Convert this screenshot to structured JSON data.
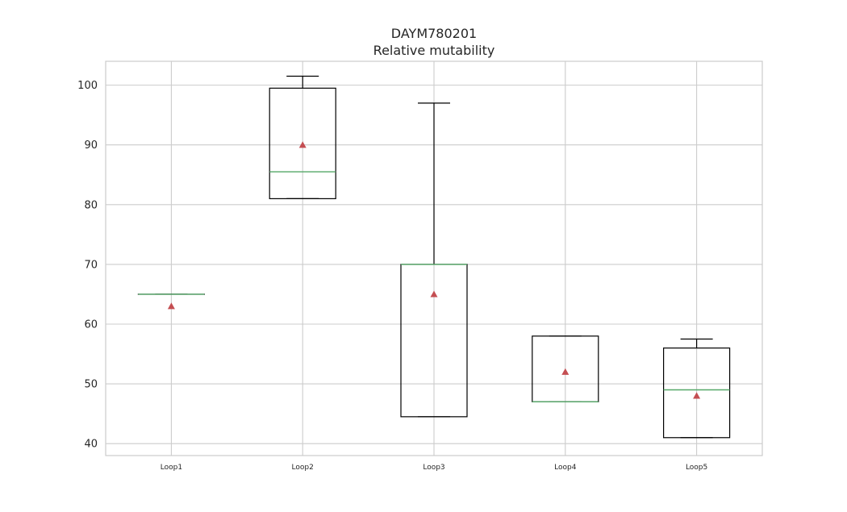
{
  "chart_data": {
    "type": "box",
    "title": "DAYM780201",
    "subtitle": "Relative mutability",
    "xlabel": "",
    "ylabel": "",
    "ylim": [
      38,
      104
    ],
    "yticks": [
      40,
      50,
      60,
      70,
      80,
      90,
      100
    ],
    "grid": true,
    "categories": [
      "Loop1",
      "Loop2",
      "Loop3",
      "Loop4",
      "Loop5"
    ],
    "boxes": [
      {
        "whisker_low": 65,
        "q1": 65,
        "median": 65,
        "q3": 65,
        "whisker_high": 65,
        "mean": 63
      },
      {
        "whisker_low": 81,
        "q1": 81,
        "median": 85.5,
        "q3": 99.5,
        "whisker_high": 101.5,
        "mean": 90
      },
      {
        "whisker_low": 44.5,
        "q1": 44.5,
        "median": 70,
        "q3": 70,
        "whisker_high": 97,
        "mean": 65
      },
      {
        "whisker_low": 47,
        "q1": 47,
        "median": 47,
        "q3": 58,
        "whisker_high": 58,
        "mean": 52
      },
      {
        "whisker_low": 41,
        "q1": 41,
        "median": 49,
        "q3": 56,
        "whisker_high": 57.5,
        "mean": 48
      }
    ],
    "colors": {
      "box": "#000000",
      "median": "#55a868",
      "mean": "#c44e52",
      "grid": "#cccccc",
      "frame": "#cccccc"
    }
  }
}
